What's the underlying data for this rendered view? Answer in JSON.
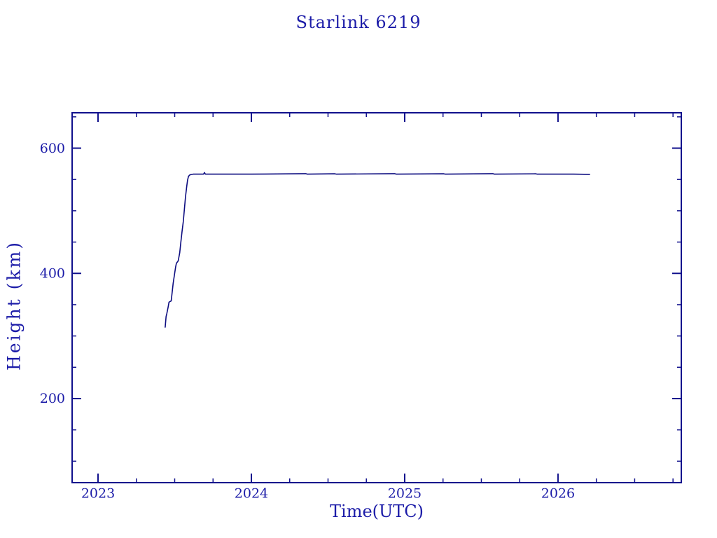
{
  "page": {
    "background": "#FFFFFF"
  },
  "chart_data": {
    "type": "line",
    "title": "Starlink 6219",
    "xlabel": "Time(UTC)",
    "ylabel": "Height (km)",
    "xlim": [
      2022.831,
      2026.804
    ],
    "ylim": [
      65.7,
      656.5
    ],
    "xticks": {
      "major": [
        2023,
        2024,
        2025,
        2026
      ],
      "labels": [
        "2023",
        "2024",
        "2025",
        "2026"
      ],
      "minor_step": 0.25
    },
    "yticks": {
      "major": [
        200,
        400,
        600
      ],
      "labels": [
        "200",
        "400",
        "600"
      ],
      "minor_step": 50
    },
    "grid": false,
    "legend": false,
    "colors": {
      "axis": "#10108C",
      "text": "#1C1CA8",
      "line": "#0D0D80",
      "background": "#FFFFFF"
    },
    "series": [
      {
        "name": "height_km",
        "points": [
          [
            2023.438,
            314
          ],
          [
            2023.444,
            331
          ],
          [
            2023.449,
            336
          ],
          [
            2023.457,
            346
          ],
          [
            2023.463,
            354
          ],
          [
            2023.477,
            356
          ],
          [
            2023.483,
            369
          ],
          [
            2023.49,
            384
          ],
          [
            2023.499,
            399
          ],
          [
            2023.506,
            410
          ],
          [
            2023.511,
            416
          ],
          [
            2023.523,
            420
          ],
          [
            2023.533,
            433
          ],
          [
            2023.54,
            450
          ],
          [
            2023.548,
            467
          ],
          [
            2023.556,
            483
          ],
          [
            2023.563,
            502
          ],
          [
            2023.571,
            523
          ],
          [
            2023.579,
            540
          ],
          [
            2023.584,
            549
          ],
          [
            2023.59,
            555
          ],
          [
            2023.6,
            557.5
          ],
          [
            2023.62,
            558.5
          ],
          [
            2023.688,
            558.5
          ],
          [
            2023.694,
            561
          ],
          [
            2023.7,
            558.5
          ],
          [
            2024.0,
            558.5
          ],
          [
            2024.355,
            559.3
          ],
          [
            2024.365,
            558.5
          ],
          [
            2024.545,
            559.0
          ],
          [
            2024.555,
            558.5
          ],
          [
            2024.935,
            559.3
          ],
          [
            2024.945,
            558.5
          ],
          [
            2025.255,
            559.0
          ],
          [
            2025.265,
            558.5
          ],
          [
            2025.575,
            559.3
          ],
          [
            2025.585,
            558.5
          ],
          [
            2025.855,
            559.0
          ],
          [
            2025.865,
            558.5
          ],
          [
            2026.1,
            558.5
          ],
          [
            2026.206,
            558.2
          ]
        ]
      }
    ]
  }
}
